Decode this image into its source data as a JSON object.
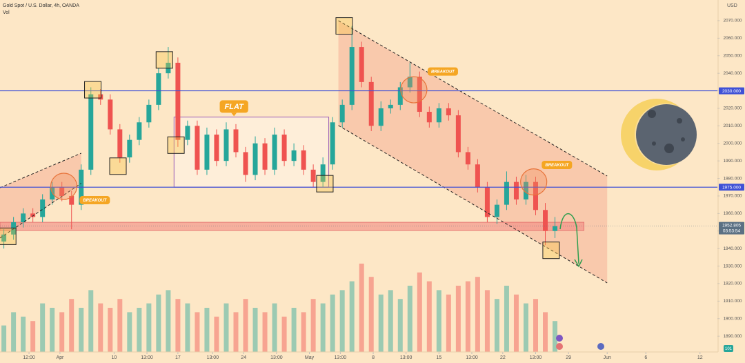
{
  "chart_data": {
    "type": "candlestick",
    "title": "Gold Spot / U.S. Dollar, 4h, OANDA",
    "volume_label": "Vol",
    "currency": "USD",
    "badge": "101",
    "up_color": "#26a69a",
    "down_color": "#ef5350",
    "x": [
      2,
      7,
      12,
      17,
      22,
      27,
      32,
      37,
      42,
      47,
      52,
      57,
      62,
      67,
      72,
      77,
      82,
      87,
      92,
      97,
      102,
      107,
      112,
      117,
      122,
      127,
      132,
      137,
      142,
      147,
      152,
      157,
      162,
      167,
      172,
      177,
      182,
      187,
      192,
      197,
      202,
      207,
      212,
      217,
      222,
      227,
      232,
      237,
      242,
      247,
      252,
      257,
      262,
      267,
      272,
      277,
      282,
      287
    ],
    "open": [
      1944,
      1948,
      1955,
      1960,
      1958,
      1968,
      1975,
      1970,
      1965,
      1985,
      2028,
      2025,
      2008,
      1992,
      2002,
      2012,
      2022,
      2040,
      2046,
      2002,
      2010,
      1985,
      2005,
      1990,
      2008,
      1995,
      1982,
      2000,
      1985,
      2005,
      1990,
      1996,
      1985,
      1978,
      1988,
      2012,
      2022,
      2055,
      2035,
      2010,
      2020,
      2022,
      2032,
      2038,
      2018,
      2012,
      2020,
      2016,
      1995,
      1988,
      1975,
      1958,
      1965,
      1978,
      1968,
      1978,
      1962,
      1950
    ],
    "high": [
      1951,
      1958,
      1963,
      1963,
      1971,
      1978,
      1978,
      1973,
      1988,
      2032,
      2031,
      2028,
      2011,
      2005,
      2015,
      2025,
      2043,
      2055,
      2049,
      2013,
      2013,
      2009,
      2008,
      2012,
      2011,
      1998,
      2004,
      2003,
      2009,
      2008,
      2000,
      1999,
      1988,
      1992,
      2015,
      2025,
      2067,
      2058,
      2038,
      2024,
      2025,
      2035,
      2046,
      2041,
      2021,
      2023,
      2023,
      2019,
      1998,
      1991,
      1978,
      1968,
      1984,
      1981,
      1982,
      1981,
      1966,
      1958
    ],
    "low": [
      1940,
      1945,
      1952,
      1955,
      1955,
      1965,
      1967,
      1951,
      1962,
      1982,
      2022,
      2005,
      1989,
      1989,
      1999,
      2009,
      2019,
      2037,
      1998,
      1999,
      1982,
      1982,
      1987,
      1987,
      1992,
      1978,
      1979,
      1982,
      1982,
      1987,
      1987,
      1982,
      1975,
      1975,
      1985,
      2009,
      2019,
      2032,
      2007,
      2007,
      2017,
      2019,
      2029,
      2015,
      2009,
      2009,
      2013,
      1992,
      1985,
      1972,
      1955,
      1954,
      1962,
      1965,
      1965,
      1959,
      1942,
      1946
    ],
    "close": [
      1948,
      1955,
      1960,
      1958,
      1968,
      1975,
      1970,
      1965,
      1985,
      2028,
      2025,
      2008,
      1992,
      2002,
      2012,
      2022,
      2040,
      2046,
      2002,
      2010,
      1985,
      2005,
      1990,
      2008,
      1995,
      1982,
      2000,
      1985,
      2005,
      1990,
      1996,
      1985,
      1978,
      1988,
      2012,
      2022,
      2055,
      2035,
      2010,
      2020,
      2022,
      2032,
      2038,
      2018,
      2012,
      2020,
      2016,
      1995,
      1988,
      1975,
      1958,
      1965,
      1978,
      1968,
      1978,
      1962,
      1950,
      1952.805
    ],
    "volume": [
      30,
      45,
      40,
      35,
      55,
      50,
      45,
      60,
      50,
      70,
      55,
      50,
      60,
      45,
      50,
      55,
      65,
      70,
      60,
      55,
      45,
      50,
      40,
      55,
      45,
      60,
      50,
      45,
      55,
      40,
      50,
      45,
      60,
      55,
      65,
      70,
      80,
      100,
      85,
      65,
      70,
      60,
      75,
      90,
      80,
      70,
      65,
      75,
      80,
      85,
      70,
      60,
      75,
      65,
      55,
      60,
      45,
      35
    ],
    "xlim": [
      0,
      371
    ],
    "ylim": [
      1881,
      2081.8
    ],
    "vlim": [
      0,
      100
    ],
    "xticks": [
      {
        "value": 15,
        "label": "12:00"
      },
      {
        "value": 31,
        "label": "Apr"
      },
      {
        "value": 59,
        "label": "10"
      },
      {
        "value": 76,
        "label": "13:00"
      },
      {
        "value": 92,
        "label": "17"
      },
      {
        "value": 110,
        "label": "13:00"
      },
      {
        "value": 126,
        "label": "24"
      },
      {
        "value": 143,
        "label": "13:00"
      },
      {
        "value": 160,
        "label": "May"
      },
      {
        "value": 176,
        "label": "13:00"
      },
      {
        "value": 193,
        "label": "8"
      },
      {
        "value": 210,
        "label": "13:00"
      },
      {
        "value": 227,
        "label": "15"
      },
      {
        "value": 244,
        "label": "13:00"
      },
      {
        "value": 260,
        "label": "22"
      },
      {
        "value": 277,
        "label": "13:00"
      },
      {
        "value": 294,
        "label": "29"
      },
      {
        "value": 314,
        "label": "Jun"
      },
      {
        "value": 334,
        "label": "6"
      },
      {
        "value": 362,
        "label": "12"
      }
    ],
    "yticks": [
      {
        "value": 1890,
        "label": "1890.000"
      },
      {
        "value": 1900,
        "label": "1900.000"
      },
      {
        "value": 1910,
        "label": "1910.000"
      },
      {
        "value": 1920,
        "label": "1920.000"
      },
      {
        "value": 1930,
        "label": "1930.000"
      },
      {
        "value": 1940,
        "label": "1940.000"
      },
      {
        "value": 1950,
        "label": "1950.000"
      },
      {
        "value": 1960,
        "label": "1960.000"
      },
      {
        "value": 1970,
        "label": "1970.000"
      },
      {
        "value": 1980,
        "label": "1980.000"
      },
      {
        "value": 1990,
        "label": "1990.000"
      },
      {
        "value": 2000,
        "label": "2000.000"
      },
      {
        "value": 2010,
        "label": "2010.000"
      },
      {
        "value": 2020,
        "label": "2020.000"
      },
      {
        "value": 2030,
        "label": "2030.000"
      },
      {
        "value": 2040,
        "label": "2040.000"
      },
      {
        "value": 2050,
        "label": "2050.000"
      },
      {
        "value": 2060,
        "label": "2060.000"
      },
      {
        "value": 2070,
        "label": "2070.000"
      }
    ],
    "last_price": 1952.805,
    "countdown": "03:53:54",
    "hlines": [
      {
        "value": 2030,
        "label": "2030.000",
        "color": "#3f51d6"
      },
      {
        "value": 1975,
        "label": "1975.000",
        "color": "#3f51d6"
      }
    ],
    "zone": {
      "x": [
        0,
        302
      ],
      "y": [
        1950.3,
        1955
      ],
      "color": "#f28b82"
    },
    "flat_box": {
      "x": [
        90,
        170
      ],
      "y": [
        1975,
        2015
      ],
      "color": "#9c5fb5"
    },
    "channels": [
      {
        "x": [
          0,
          42
        ],
        "upper": [
          1974.7,
          1994.4
        ],
        "lower": [
          1946,
          1977.2
        ]
      },
      {
        "x": [
          175,
          314
        ],
        "upper": [
          2070,
          1981.4
        ],
        "lower": [
          2010.2,
          1920.4
        ]
      }
    ],
    "boxes": [
      {
        "x": 4,
        "y": 1947
      },
      {
        "x": 48,
        "y": 2030.6
      },
      {
        "x": 61,
        "y": 1987
      },
      {
        "x": 85,
        "y": 2047.6
      },
      {
        "x": 91,
        "y": 1999
      },
      {
        "x": 178,
        "y": 2067
      },
      {
        "x": 168,
        "y": 1977
      },
      {
        "x": 285,
        "y": 1939
      }
    ],
    "circles": [
      {
        "x": 33,
        "y": 1975.5
      },
      {
        "x": 214,
        "y": 2030.6
      },
      {
        "x": 276,
        "y": 1978
      }
    ],
    "callouts": [
      {
        "text": "FLAT",
        "x": 121,
        "y": 2021
      },
      {
        "text": "BREAKOUT",
        "x": 49,
        "y": 1967.6
      },
      {
        "text": "BREAKOUT",
        "x": 229,
        "y": 2041
      },
      {
        "text": "BREAKOUT",
        "x": 288,
        "y": 1987.7
      }
    ]
  }
}
